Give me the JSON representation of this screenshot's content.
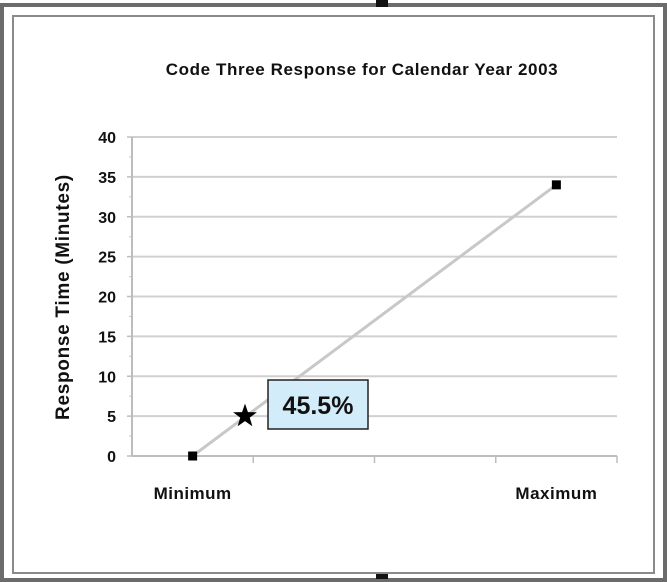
{
  "chart_data": {
    "type": "line",
    "title": "Code Three Response for Calendar Year 2003",
    "ylabel": "Response Time (Minutes)",
    "xlabel": "",
    "categories": [
      "Minimum",
      "Maximum"
    ],
    "ylim": [
      0,
      40
    ],
    "yticks": [
      "0",
      "5",
      "10",
      "15",
      "20",
      "25",
      "30",
      "35",
      "40"
    ],
    "grid": true,
    "series": [
      {
        "values": [
          0,
          34
        ]
      }
    ],
    "annotation": {
      "text": "45.5%",
      "marker": "star-icon",
      "y": 5
    },
    "colors": {
      "line": "#c8c8c8",
      "grid": "#d0d0d0",
      "callout_fill": "#d2ecf9",
      "marker": "#000000"
    }
  }
}
